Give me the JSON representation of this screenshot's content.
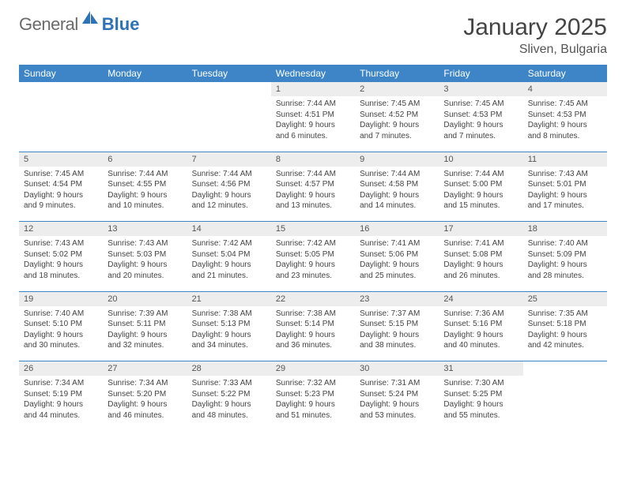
{
  "brand": {
    "text1": "General",
    "text2": "Blue"
  },
  "title": "January 2025",
  "location": "Sliven, Bulgaria",
  "theme": {
    "header_bg": "#3d85c6",
    "header_fg": "#ffffff",
    "daynum_bg": "#ededed",
    "rule_color": "#3d85c6",
    "logo_gray": "#6a6a6a",
    "logo_blue": "#2d72b5"
  },
  "weekdays": [
    "Sunday",
    "Monday",
    "Tuesday",
    "Wednesday",
    "Thursday",
    "Friday",
    "Saturday"
  ],
  "weeks": [
    [
      null,
      null,
      null,
      {
        "n": "1",
        "sunrise": "7:44 AM",
        "sunset": "4:51 PM",
        "day_h": "9",
        "day_m": "6"
      },
      {
        "n": "2",
        "sunrise": "7:45 AM",
        "sunset": "4:52 PM",
        "day_h": "9",
        "day_m": "7"
      },
      {
        "n": "3",
        "sunrise": "7:45 AM",
        "sunset": "4:53 PM",
        "day_h": "9",
        "day_m": "7"
      },
      {
        "n": "4",
        "sunrise": "7:45 AM",
        "sunset": "4:53 PM",
        "day_h": "9",
        "day_m": "8"
      }
    ],
    [
      {
        "n": "5",
        "sunrise": "7:45 AM",
        "sunset": "4:54 PM",
        "day_h": "9",
        "day_m": "9"
      },
      {
        "n": "6",
        "sunrise": "7:44 AM",
        "sunset": "4:55 PM",
        "day_h": "9",
        "day_m": "10"
      },
      {
        "n": "7",
        "sunrise": "7:44 AM",
        "sunset": "4:56 PM",
        "day_h": "9",
        "day_m": "12"
      },
      {
        "n": "8",
        "sunrise": "7:44 AM",
        "sunset": "4:57 PM",
        "day_h": "9",
        "day_m": "13"
      },
      {
        "n": "9",
        "sunrise": "7:44 AM",
        "sunset": "4:58 PM",
        "day_h": "9",
        "day_m": "14"
      },
      {
        "n": "10",
        "sunrise": "7:44 AM",
        "sunset": "5:00 PM",
        "day_h": "9",
        "day_m": "15"
      },
      {
        "n": "11",
        "sunrise": "7:43 AM",
        "sunset": "5:01 PM",
        "day_h": "9",
        "day_m": "17"
      }
    ],
    [
      {
        "n": "12",
        "sunrise": "7:43 AM",
        "sunset": "5:02 PM",
        "day_h": "9",
        "day_m": "18"
      },
      {
        "n": "13",
        "sunrise": "7:43 AM",
        "sunset": "5:03 PM",
        "day_h": "9",
        "day_m": "20"
      },
      {
        "n": "14",
        "sunrise": "7:42 AM",
        "sunset": "5:04 PM",
        "day_h": "9",
        "day_m": "21"
      },
      {
        "n": "15",
        "sunrise": "7:42 AM",
        "sunset": "5:05 PM",
        "day_h": "9",
        "day_m": "23"
      },
      {
        "n": "16",
        "sunrise": "7:41 AM",
        "sunset": "5:06 PM",
        "day_h": "9",
        "day_m": "25"
      },
      {
        "n": "17",
        "sunrise": "7:41 AM",
        "sunset": "5:08 PM",
        "day_h": "9",
        "day_m": "26"
      },
      {
        "n": "18",
        "sunrise": "7:40 AM",
        "sunset": "5:09 PM",
        "day_h": "9",
        "day_m": "28"
      }
    ],
    [
      {
        "n": "19",
        "sunrise": "7:40 AM",
        "sunset": "5:10 PM",
        "day_h": "9",
        "day_m": "30"
      },
      {
        "n": "20",
        "sunrise": "7:39 AM",
        "sunset": "5:11 PM",
        "day_h": "9",
        "day_m": "32"
      },
      {
        "n": "21",
        "sunrise": "7:38 AM",
        "sunset": "5:13 PM",
        "day_h": "9",
        "day_m": "34"
      },
      {
        "n": "22",
        "sunrise": "7:38 AM",
        "sunset": "5:14 PM",
        "day_h": "9",
        "day_m": "36"
      },
      {
        "n": "23",
        "sunrise": "7:37 AM",
        "sunset": "5:15 PM",
        "day_h": "9",
        "day_m": "38"
      },
      {
        "n": "24",
        "sunrise": "7:36 AM",
        "sunset": "5:16 PM",
        "day_h": "9",
        "day_m": "40"
      },
      {
        "n": "25",
        "sunrise": "7:35 AM",
        "sunset": "5:18 PM",
        "day_h": "9",
        "day_m": "42"
      }
    ],
    [
      {
        "n": "26",
        "sunrise": "7:34 AM",
        "sunset": "5:19 PM",
        "day_h": "9",
        "day_m": "44"
      },
      {
        "n": "27",
        "sunrise": "7:34 AM",
        "sunset": "5:20 PM",
        "day_h": "9",
        "day_m": "46"
      },
      {
        "n": "28",
        "sunrise": "7:33 AM",
        "sunset": "5:22 PM",
        "day_h": "9",
        "day_m": "48"
      },
      {
        "n": "29",
        "sunrise": "7:32 AM",
        "sunset": "5:23 PM",
        "day_h": "9",
        "day_m": "51"
      },
      {
        "n": "30",
        "sunrise": "7:31 AM",
        "sunset": "5:24 PM",
        "day_h": "9",
        "day_m": "53"
      },
      {
        "n": "31",
        "sunrise": "7:30 AM",
        "sunset": "5:25 PM",
        "day_h": "9",
        "day_m": "55"
      },
      null
    ]
  ]
}
